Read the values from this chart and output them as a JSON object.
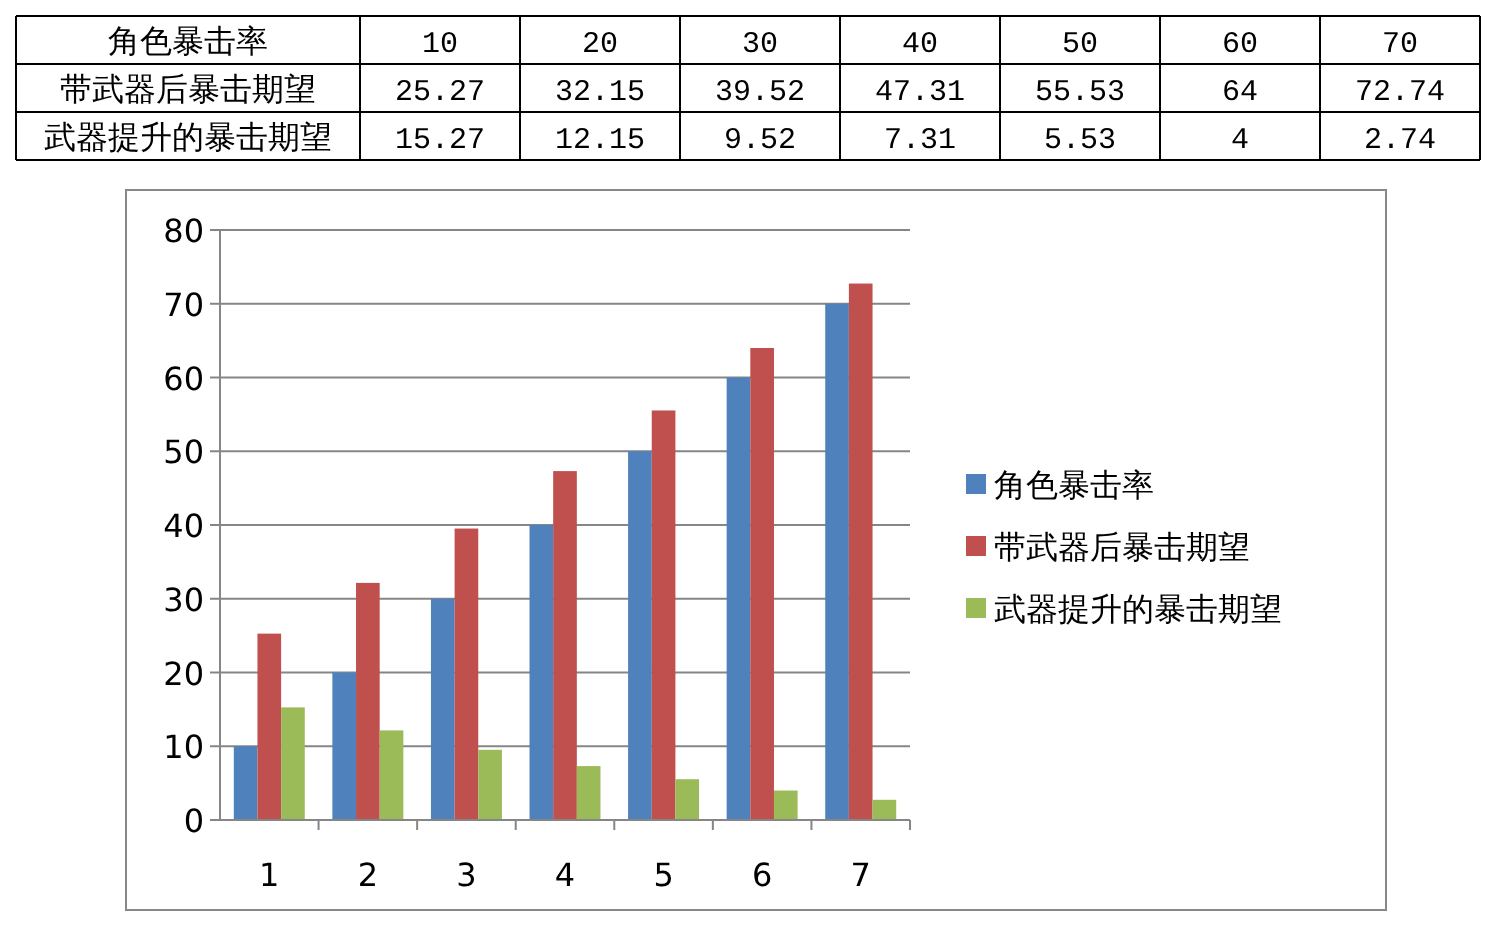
{
  "chart_data": [
    {
      "type": "heatmap",
      "xlabel": "角色暴击率",
      "categories": [
        "10",
        "20",
        "30",
        "40",
        "50",
        "60",
        "70"
      ],
      "y_categories": [
        "带武器后暴击期望",
        "武器提升的暴击期望"
      ],
      "cells": [
        [
          25.27,
          32.15,
          39.52,
          47.31,
          55.53,
          64,
          72.74
        ],
        [
          15.27,
          12.15,
          9.52,
          7.31,
          5.53,
          4,
          2.74
        ]
      ],
      "data_labels": true
    },
    {
      "type": "bar",
      "categories": [
        "1",
        "2",
        "3",
        "4",
        "5",
        "6",
        "7"
      ],
      "series": [
        {
          "name": "角色暴击率",
          "color": "#4f81bd",
          "values": [
            10,
            20,
            30,
            40,
            50,
            60,
            70
          ]
        },
        {
          "name": "带武器后暴击期望",
          "color": "#c0504d",
          "values": [
            25.27,
            32.15,
            39.52,
            47.31,
            55.53,
            64,
            72.74
          ]
        },
        {
          "name": "武器提升的暴击期望",
          "color": "#9bbb59",
          "values": [
            15.27,
            12.15,
            9.52,
            7.31,
            5.53,
            4,
            2.74
          ]
        }
      ],
      "ylim": [
        0,
        80
      ],
      "yticks": [
        0,
        10,
        20,
        30,
        40,
        50,
        60,
        70,
        80
      ],
      "grid": "y",
      "legend": "right"
    }
  ]
}
